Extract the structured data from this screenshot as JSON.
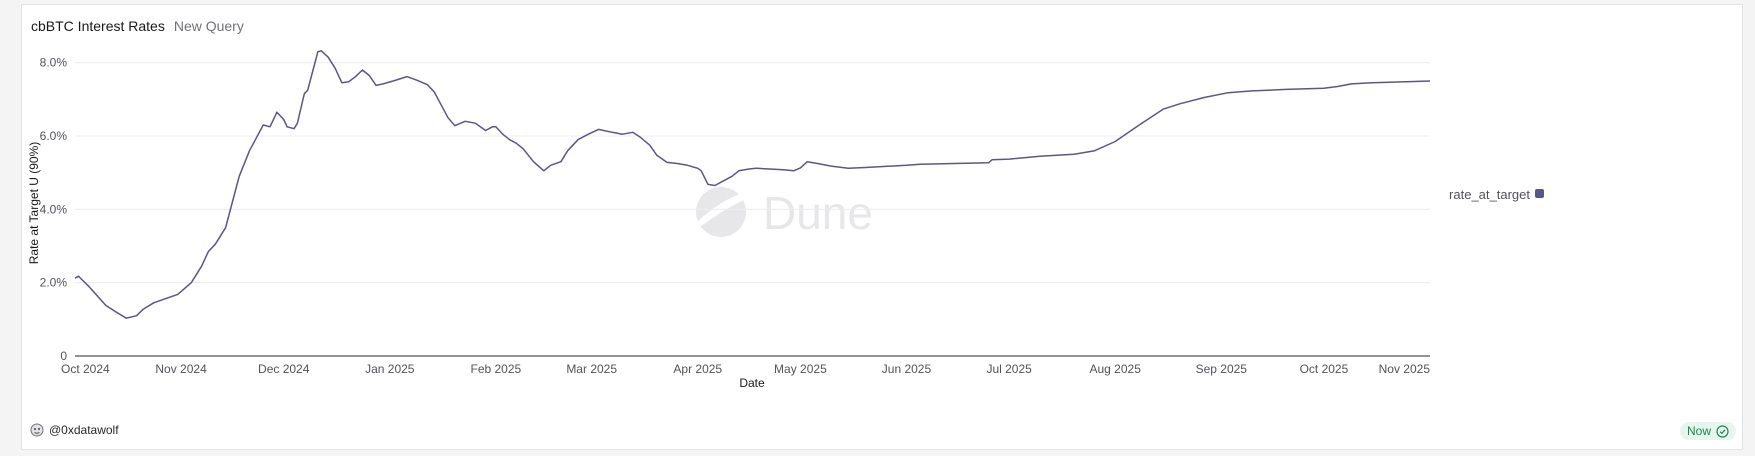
{
  "header": {
    "title": "cbBTC Interest Rates",
    "subtitle": "New Query"
  },
  "watermark": {
    "text": "Dune"
  },
  "footer": {
    "author": "@0xdatawolf",
    "status_badge": "Now"
  },
  "colors": {
    "series": "#59568f",
    "grid": "#ececf0",
    "accent_green": "#178a4e"
  },
  "chart_data": {
    "type": "line",
    "title": "",
    "xlabel": "Date",
    "ylabel": "Rate at Target U (90%)",
    "ylim": [
      0,
      0.09
    ],
    "yticks": [
      {
        "value": 0,
        "label": "0"
      },
      {
        "value": 0.02,
        "label": "2.0%"
      },
      {
        "value": 0.04,
        "label": "4.0%"
      },
      {
        "value": 0.06,
        "label": "6.0%"
      },
      {
        "value": 0.08,
        "label": "8.0%"
      }
    ],
    "xlim": [
      "2024-10-01",
      "2025-11-01"
    ],
    "xticks": [
      {
        "date": "2024-10-01",
        "label": "Oct 2024"
      },
      {
        "date": "2024-11-01",
        "label": "Nov 2024"
      },
      {
        "date": "2024-12-01",
        "label": "Dec 2024"
      },
      {
        "date": "2025-01-01",
        "label": "Jan 2025"
      },
      {
        "date": "2025-02-01",
        "label": "Feb 2025"
      },
      {
        "date": "2025-03-01",
        "label": "Mar 2025"
      },
      {
        "date": "2025-04-01",
        "label": "Apr 2025"
      },
      {
        "date": "2025-05-01",
        "label": "May 2025"
      },
      {
        "date": "2025-06-01",
        "label": "Jun 2025"
      },
      {
        "date": "2025-07-01",
        "label": "Jul 2025"
      },
      {
        "date": "2025-08-01",
        "label": "Aug 2025"
      },
      {
        "date": "2025-09-01",
        "label": "Sep 2025"
      },
      {
        "date": "2025-10-01",
        "label": "Oct 2025"
      },
      {
        "date": "2025-11-01",
        "label": "Nov 2025"
      }
    ],
    "grid": true,
    "legend": {
      "position": "right"
    },
    "series": [
      {
        "name": "rate_at_target",
        "color": "#59568f",
        "points": [
          [
            "2024-10-01",
            0.0212
          ],
          [
            "2024-10-02",
            0.0218
          ],
          [
            "2024-10-05",
            0.019
          ],
          [
            "2024-10-10",
            0.0138
          ],
          [
            "2024-10-13",
            0.012
          ],
          [
            "2024-10-16",
            0.0103
          ],
          [
            "2024-10-19",
            0.011
          ],
          [
            "2024-10-21",
            0.0128
          ],
          [
            "2024-10-24",
            0.0145
          ],
          [
            "2024-10-27",
            0.0155
          ],
          [
            "2024-10-31",
            0.0168
          ],
          [
            "2024-11-04",
            0.02
          ],
          [
            "2024-11-07",
            0.0245
          ],
          [
            "2024-11-09",
            0.0285
          ],
          [
            "2024-11-11",
            0.0305
          ],
          [
            "2024-11-14",
            0.035
          ],
          [
            "2024-11-16",
            0.042
          ],
          [
            "2024-11-18",
            0.049
          ],
          [
            "2024-11-21",
            0.056
          ],
          [
            "2024-11-23",
            0.0595
          ],
          [
            "2024-11-25",
            0.063
          ],
          [
            "2024-11-27",
            0.0625
          ],
          [
            "2024-11-29",
            0.0665
          ],
          [
            "2024-12-01",
            0.0645
          ],
          [
            "2024-12-02",
            0.0625
          ],
          [
            "2024-12-04",
            0.062
          ],
          [
            "2024-12-05",
            0.0635
          ],
          [
            "2024-12-07",
            0.0715
          ],
          [
            "2024-12-08",
            0.0725
          ],
          [
            "2024-12-10",
            0.0795
          ],
          [
            "2024-12-11",
            0.083
          ],
          [
            "2024-12-12",
            0.0832
          ],
          [
            "2024-12-14",
            0.0815
          ],
          [
            "2024-12-16",
            0.0785
          ],
          [
            "2024-12-18",
            0.0745
          ],
          [
            "2024-12-20",
            0.0748
          ],
          [
            "2024-12-22",
            0.0762
          ],
          [
            "2024-12-24",
            0.078
          ],
          [
            "2024-12-26",
            0.0765
          ],
          [
            "2024-12-28",
            0.0738
          ],
          [
            "2024-12-30",
            0.0742
          ],
          [
            "2025-01-02",
            0.075
          ],
          [
            "2025-01-06",
            0.0762
          ],
          [
            "2025-01-09",
            0.0752
          ],
          [
            "2025-01-12",
            0.074
          ],
          [
            "2025-01-14",
            0.072
          ],
          [
            "2025-01-16",
            0.0685
          ],
          [
            "2025-01-18",
            0.065
          ],
          [
            "2025-01-20",
            0.0628
          ],
          [
            "2025-01-23",
            0.064
          ],
          [
            "2025-01-26",
            0.0635
          ],
          [
            "2025-01-29",
            0.0615
          ],
          [
            "2025-01-31",
            0.0625
          ],
          [
            "2025-02-01",
            0.0625
          ],
          [
            "2025-02-03",
            0.0605
          ],
          [
            "2025-02-05",
            0.059
          ],
          [
            "2025-02-07",
            0.058
          ],
          [
            "2025-02-09",
            0.0565
          ],
          [
            "2025-02-12",
            0.053
          ],
          [
            "2025-02-15",
            0.0505
          ],
          [
            "2025-02-17",
            0.052
          ],
          [
            "2025-02-20",
            0.053
          ],
          [
            "2025-02-22",
            0.056
          ],
          [
            "2025-02-25",
            0.059
          ],
          [
            "2025-02-28",
            0.0605
          ],
          [
            "2025-03-03",
            0.0618
          ],
          [
            "2025-03-07",
            0.061
          ],
          [
            "2025-03-10",
            0.0605
          ],
          [
            "2025-03-13",
            0.061
          ],
          [
            "2025-03-15",
            0.0598
          ],
          [
            "2025-03-18",
            0.0575
          ],
          [
            "2025-03-20",
            0.0548
          ],
          [
            "2025-03-23",
            0.0528
          ],
          [
            "2025-03-26",
            0.0525
          ],
          [
            "2025-03-29",
            0.052
          ],
          [
            "2025-04-01",
            0.0512
          ],
          [
            "2025-04-02",
            0.0505
          ],
          [
            "2025-04-04",
            0.0468
          ],
          [
            "2025-04-06",
            0.0465
          ],
          [
            "2025-04-08",
            0.0475
          ],
          [
            "2025-04-11",
            0.049
          ],
          [
            "2025-04-13",
            0.0505
          ],
          [
            "2025-04-16",
            0.051
          ],
          [
            "2025-04-18",
            0.0512
          ],
          [
            "2025-04-22",
            0.051
          ],
          [
            "2025-04-26",
            0.0508
          ],
          [
            "2025-04-29",
            0.0505
          ],
          [
            "2025-05-01",
            0.0513
          ],
          [
            "2025-05-03",
            0.053
          ],
          [
            "2025-05-06",
            0.0525
          ],
          [
            "2025-05-10",
            0.0518
          ],
          [
            "2025-05-15",
            0.0512
          ],
          [
            "2025-05-20",
            0.0514
          ],
          [
            "2025-06-01",
            0.052
          ],
          [
            "2025-06-05",
            0.0523
          ],
          [
            "2025-06-15",
            0.0525
          ],
          [
            "2025-06-20",
            0.0526
          ],
          [
            "2025-06-25",
            0.0527
          ],
          [
            "2025-06-26",
            0.0535
          ],
          [
            "2025-07-01",
            0.0537
          ],
          [
            "2025-07-10",
            0.0545
          ],
          [
            "2025-07-20",
            0.055
          ],
          [
            "2025-07-26",
            0.056
          ],
          [
            "2025-08-01",
            0.0585
          ],
          [
            "2025-08-08",
            0.063
          ],
          [
            "2025-08-15",
            0.0673
          ],
          [
            "2025-08-20",
            0.0688
          ],
          [
            "2025-08-27",
            0.0705
          ],
          [
            "2025-09-03",
            0.0718
          ],
          [
            "2025-09-10",
            0.0723
          ],
          [
            "2025-09-20",
            0.0727
          ],
          [
            "2025-10-01",
            0.073
          ],
          [
            "2025-10-05",
            0.0735
          ],
          [
            "2025-10-09",
            0.0742
          ],
          [
            "2025-10-15",
            0.0745
          ],
          [
            "2025-10-25",
            0.0748
          ],
          [
            "2025-11-01",
            0.075
          ]
        ]
      }
    ]
  }
}
